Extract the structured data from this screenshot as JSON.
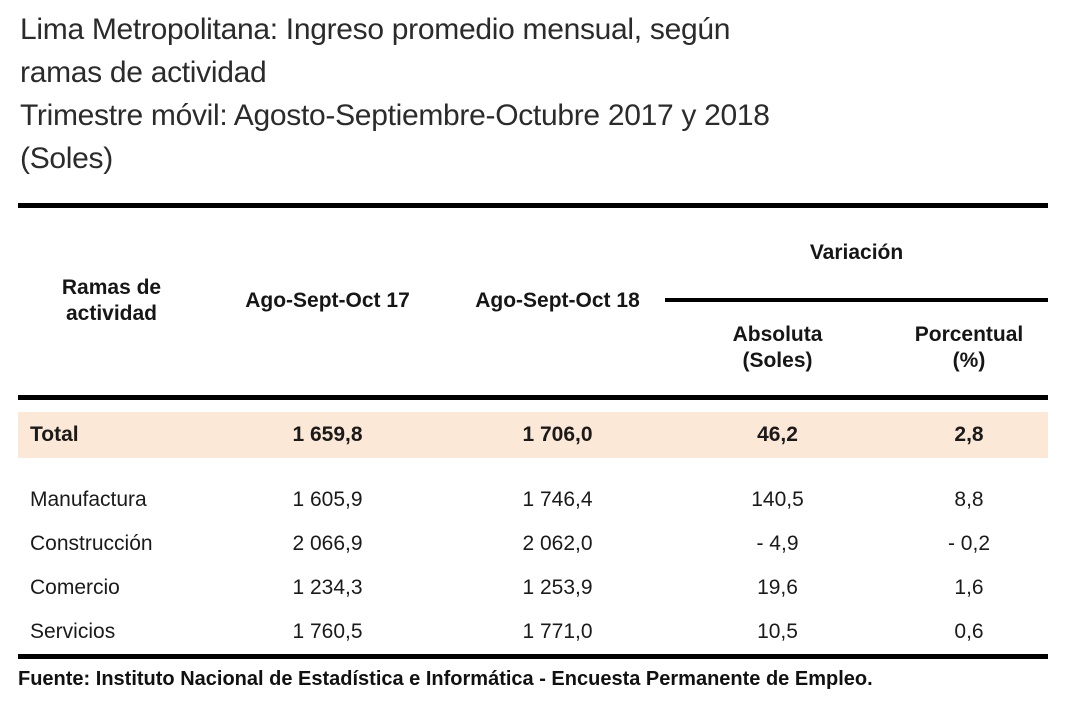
{
  "title": {
    "lines": [
      "Lima Metropolitana: Ingreso promedio mensual, según",
      "ramas de actividad",
      "Trimestre móvil: Agosto-Septiembre-Octubre 2017 y 2018",
      "(Soles)"
    ]
  },
  "table": {
    "headers": {
      "branch": "Ramas de\nactividad",
      "period_2017": "Ago-Sept-Oct 17",
      "period_2018": "Ago-Sept-Oct 18",
      "variation_group": "Variación",
      "variation_absolute": "Absoluta\n(Soles)",
      "variation_percent": "Porcentual\n(%)"
    },
    "rows": [
      {
        "label": "Total",
        "period_2017": "1 659,8",
        "period_2018": "1 706,0",
        "absolute": "46,2",
        "percent": "2,8",
        "is_total": true
      },
      {
        "label": "Manufactura",
        "period_2017": "1 605,9",
        "period_2018": "1 746,4",
        "absolute": "140,5",
        "percent": "8,8",
        "is_total": false
      },
      {
        "label": "Construcción",
        "period_2017": "2 066,9",
        "period_2018": "2 062,0",
        "absolute": "- 4,9",
        "percent": "- 0,2",
        "is_total": false
      },
      {
        "label": "Comercio",
        "period_2017": "1 234,3",
        "period_2018": "1 253,9",
        "absolute": "19,6",
        "percent": "1,6",
        "is_total": false
      },
      {
        "label": "Servicios",
        "period_2017": "1 760,5",
        "period_2018": "1 771,0",
        "absolute": "10,5",
        "percent": "0,6",
        "is_total": false
      }
    ]
  },
  "source": "Fuente: Instituto Nacional de Estadística e Informática - Encuesta Permanente de Empleo.",
  "colors": {
    "highlight_row_bg": "#fce8d6",
    "rule": "#000000",
    "text": "#1f1f1f"
  }
}
